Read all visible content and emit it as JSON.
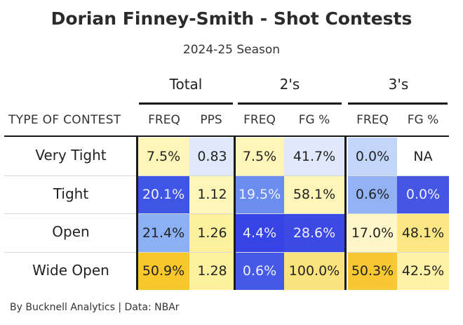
{
  "chart_data": {
    "type": "table",
    "title": "Dorian Finney-Smith - Shot Contests",
    "subtitle": "2024-25 Season",
    "row_header": "TYPE OF CONTEST",
    "groups": [
      {
        "label": "Total",
        "columns": [
          "FREQ",
          "PPS"
        ]
      },
      {
        "label": "2's",
        "columns": [
          "FREQ",
          "FG %"
        ]
      },
      {
        "label": "3's",
        "columns": [
          "FREQ",
          "FG %"
        ]
      }
    ],
    "rows": [
      {
        "label": "Very Tight",
        "values": [
          "7.5%",
          "0.83",
          "7.5%",
          "41.7%",
          "0.0%",
          "NA"
        ]
      },
      {
        "label": "Tight",
        "values": [
          "20.1%",
          "1.12",
          "19.5%",
          "58.1%",
          "0.6%",
          "0.0%"
        ]
      },
      {
        "label": "Open",
        "values": [
          "21.4%",
          "1.26",
          "4.4%",
          "28.6%",
          "17.0%",
          "48.1%"
        ]
      },
      {
        "label": "Wide Open",
        "values": [
          "50.9%",
          "1.28",
          "0.6%",
          "100.0%",
          "50.3%",
          "42.5%"
        ]
      }
    ],
    "cell_colors": [
      [
        "#fdf6b8",
        "#dfe9fb",
        "#fdf6b8",
        "#dfe9fb",
        "#c2d6fa",
        "#ffffff"
      ],
      [
        "#3f55e6",
        "#fdf6b8",
        "#6b8df0",
        "#fdf6b8",
        "#92b2f3",
        "#4456e2"
      ],
      [
        "#8cb0f4",
        "#fdf1a0",
        "#3644e6",
        "#3c49e3",
        "#fff7c9",
        "#fce784"
      ],
      [
        "#f8c72c",
        "#fdf1a0",
        "#4658e6",
        "#fae37c",
        "#f9c733",
        "#fff1a6"
      ]
    ],
    "light_text_color": "#f0f0ff",
    "dark_text_color": "#222222"
  },
  "footer": "By Bucknell Analytics | Data: NBAr"
}
